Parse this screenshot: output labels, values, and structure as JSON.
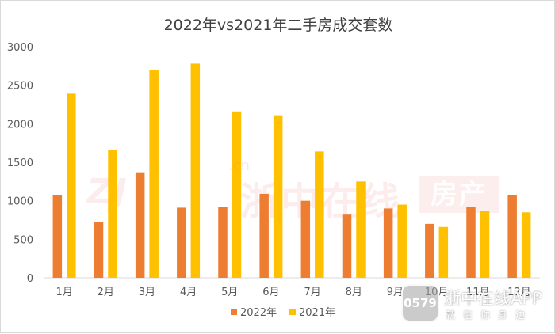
{
  "chart_data": {
    "type": "bar",
    "title": "2022年vs2021年二手房成交套数",
    "categories": [
      "1月",
      "2月",
      "3月",
      "4月",
      "5月",
      "6月",
      "7月",
      "8月",
      "9月",
      "10月",
      "11月",
      "12月"
    ],
    "series": [
      {
        "name": "2022年",
        "color": "#ED7D31",
        "values": [
          1070,
          720,
          1370,
          910,
          920,
          1090,
          1000,
          820,
          900,
          700,
          920,
          1070
        ]
      },
      {
        "name": "2021年",
        "color": "#FFC000",
        "values": [
          2390,
          1660,
          2700,
          2780,
          2160,
          2110,
          1640,
          1250,
          950,
          660,
          870,
          850
        ]
      }
    ],
    "ylim": [
      0,
      3000
    ],
    "yticks": [
      0,
      500,
      1000,
      1500,
      2000,
      2500,
      3000
    ],
    "grid": false,
    "legend": "bottom"
  },
  "watermark": {
    "domain_suffix": ".cn",
    "left_text": "浙中在线",
    "right_text": "房产"
  },
  "app_badge": {
    "logo_text": "0579",
    "name": "浙中在线APP",
    "slogan": "就在你身边"
  }
}
